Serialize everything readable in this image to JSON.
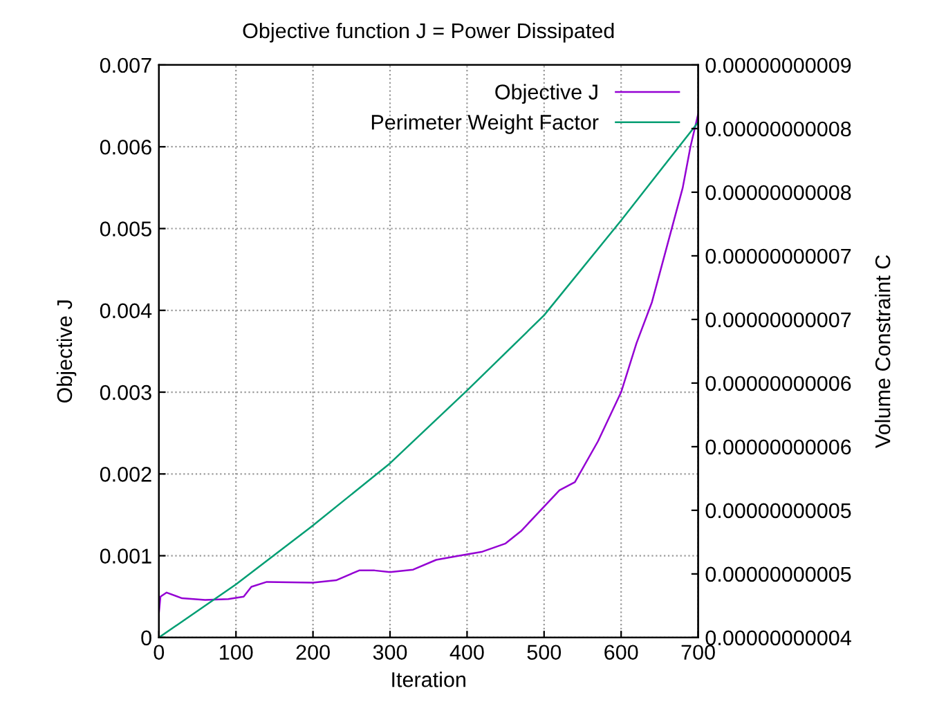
{
  "chart_data": {
    "type": "line",
    "title": "Objective function J = Power Dissipated",
    "xlabel": "Iteration",
    "ylabel": "Objective J",
    "y2label": "Volume Constraint C",
    "xlim": [
      0,
      700
    ],
    "xticks": [
      0,
      100,
      200,
      300,
      400,
      500,
      600,
      700
    ],
    "ylim": [
      0,
      0.007
    ],
    "yticks": [
      0,
      0.001,
      0.002,
      0.003,
      0.004,
      0.005,
      0.006,
      0.007
    ],
    "y2lim": [
      4e-11,
      8.5e-11
    ],
    "y2ticks": [
      {
        "value": 4e-11,
        "label": "0.00000000004"
      },
      {
        "value": 4.5e-11,
        "label": "0.00000000005"
      },
      {
        "value": 5e-11,
        "label": "0.00000000005"
      },
      {
        "value": 5.5e-11,
        "label": "0.00000000006"
      },
      {
        "value": 6e-11,
        "label": "0.00000000006"
      },
      {
        "value": 6.5e-11,
        "label": "0.00000000007"
      },
      {
        "value": 7e-11,
        "label": "0.00000000007"
      },
      {
        "value": 7.5e-11,
        "label": "0.00000000008"
      },
      {
        "value": 8e-11,
        "label": "0.00000000008"
      },
      {
        "value": 8.5e-11,
        "label": "0.00000000009"
      }
    ],
    "grid": true,
    "legend": "top right",
    "line_style": "solid",
    "marker": "none",
    "series": [
      {
        "name": "Objective J",
        "color": "#9400d3",
        "x": [
          0,
          2,
          10,
          30,
          60,
          90,
          110,
          120,
          140,
          200,
          230,
          260,
          280,
          300,
          330,
          360,
          390,
          420,
          450,
          470,
          490,
          520,
          540,
          570,
          600,
          620,
          640,
          660,
          680,
          690,
          700
        ],
        "values": [
          0.0003,
          0.0005,
          0.00055,
          0.00048,
          0.00046,
          0.00047,
          0.0005,
          0.00062,
          0.00068,
          0.00067,
          0.0007,
          0.00082,
          0.00082,
          0.0008,
          0.00083,
          0.00095,
          0.001,
          0.00105,
          0.00115,
          0.0013,
          0.0015,
          0.0018,
          0.0019,
          0.0024,
          0.003,
          0.0036,
          0.0041,
          0.0048,
          0.0055,
          0.006,
          0.0064
        ]
      },
      {
        "name": "Perimeter Weight Factor",
        "color": "#009e73",
        "x": [
          0,
          100,
          200,
          300,
          400,
          500,
          600,
          700
        ],
        "values": [
          0,
          0.00065,
          0.00137,
          0.00213,
          0.00302,
          0.00394,
          0.0051,
          0.0063
        ]
      }
    ]
  }
}
